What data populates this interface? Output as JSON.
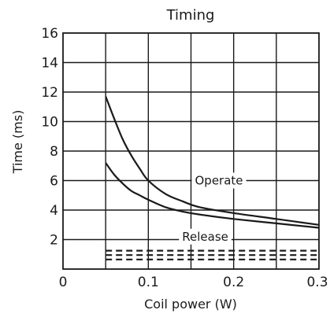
{
  "chart_data": {
    "type": "line",
    "title": "Timing",
    "xlabel": "Coil power (W)",
    "ylabel": "Time (ms)",
    "xlim": [
      0,
      0.3
    ],
    "ylim": [
      0,
      16
    ],
    "x_ticks": [
      0,
      0.1,
      0.2,
      0.3
    ],
    "x_tick_labels": [
      "0",
      "0.1",
      "0.2",
      "0.3"
    ],
    "y_ticks": [
      2,
      4,
      6,
      8,
      10,
      12,
      14,
      16
    ],
    "y_tick_labels": [
      "2",
      "4",
      "6",
      "8",
      "10",
      "12",
      "14",
      "16"
    ],
    "grid": true,
    "annotations": [
      {
        "text": "Operate",
        "x": 0.15,
        "y": 6.0
      },
      {
        "text": "Release",
        "x": 0.135,
        "y": 2.2
      }
    ],
    "series": [
      {
        "style": "solid",
        "points": [
          [
            0.05,
            11.7
          ],
          [
            0.06,
            10.2
          ],
          [
            0.07,
            8.8
          ],
          [
            0.08,
            7.7
          ],
          [
            0.09,
            6.8
          ],
          [
            0.1,
            6.0
          ],
          [
            0.12,
            5.1
          ],
          [
            0.14,
            4.6
          ],
          [
            0.16,
            4.2
          ],
          [
            0.2,
            3.8
          ],
          [
            0.25,
            3.4
          ],
          [
            0.3,
            3.0
          ]
        ]
      },
      {
        "style": "solid",
        "points": [
          [
            0.05,
            7.2
          ],
          [
            0.06,
            6.4
          ],
          [
            0.07,
            5.8
          ],
          [
            0.08,
            5.3
          ],
          [
            0.09,
            5.0
          ],
          [
            0.1,
            4.7
          ],
          [
            0.12,
            4.2
          ],
          [
            0.14,
            3.9
          ],
          [
            0.16,
            3.7
          ],
          [
            0.2,
            3.4
          ],
          [
            0.25,
            3.1
          ],
          [
            0.3,
            2.8
          ]
        ]
      },
      {
        "style": "dashed",
        "points": [
          [
            0.05,
            1.25
          ],
          [
            0.3,
            1.25
          ]
        ]
      },
      {
        "style": "dashed",
        "points": [
          [
            0.05,
            0.95
          ],
          [
            0.3,
            0.95
          ]
        ]
      },
      {
        "style": "dashed",
        "points": [
          [
            0.05,
            0.65
          ],
          [
            0.3,
            0.65
          ]
        ]
      }
    ]
  }
}
